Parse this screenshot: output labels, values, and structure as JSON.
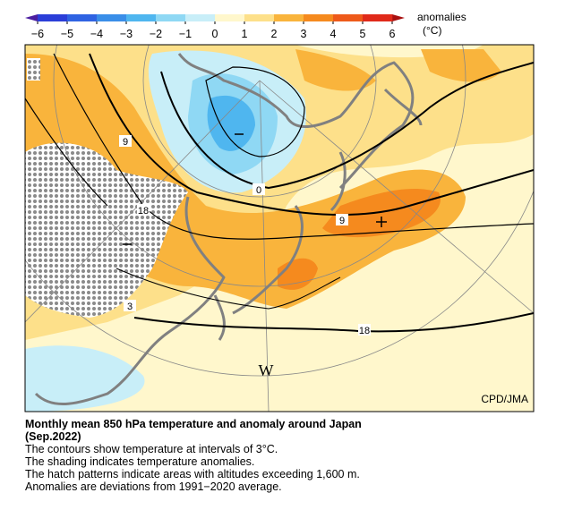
{
  "colorbar": {
    "label": "anomalies",
    "unit": "(°C)",
    "ticks": [
      {
        "value": -6,
        "label": "−6"
      },
      {
        "value": -5,
        "label": "−5"
      },
      {
        "value": -4,
        "label": "−4"
      },
      {
        "value": -3,
        "label": "−3"
      },
      {
        "value": -2,
        "label": "−2"
      },
      {
        "value": -1,
        "label": "−1"
      },
      0,
      1,
      2,
      3,
      4,
      5,
      6
    ],
    "colors": [
      "#2b3ed8",
      "#2f63e2",
      "#3a8ee8",
      "#4fb6ef",
      "#8fd8f4",
      "#c8eef8",
      "#fff7cc",
      "#fde08a",
      "#f9b43c",
      "#f58a1e",
      "#ee5a1a",
      "#e02a1a"
    ],
    "under_color": "#4b1ea0",
    "over_color": "#a81010"
  },
  "map": {
    "contour_labels": [
      "9",
      "0",
      "18",
      "9",
      "18",
      "3"
    ],
    "region_label": "W",
    "credit": "CPD/JMA"
  },
  "caption": {
    "title": "Monthly mean 850 hPa temperature and anomaly around Japan",
    "period": "(Sep.2022)",
    "lines": [
      "The contours show temperature at intervals of 3°C.",
      "The shading indicates temperature anomalies.",
      "The hatch patterns indicate areas with altitudes exceeding 1,600 m.",
      "Anomalies are deviations from 1991−2020 average."
    ]
  }
}
